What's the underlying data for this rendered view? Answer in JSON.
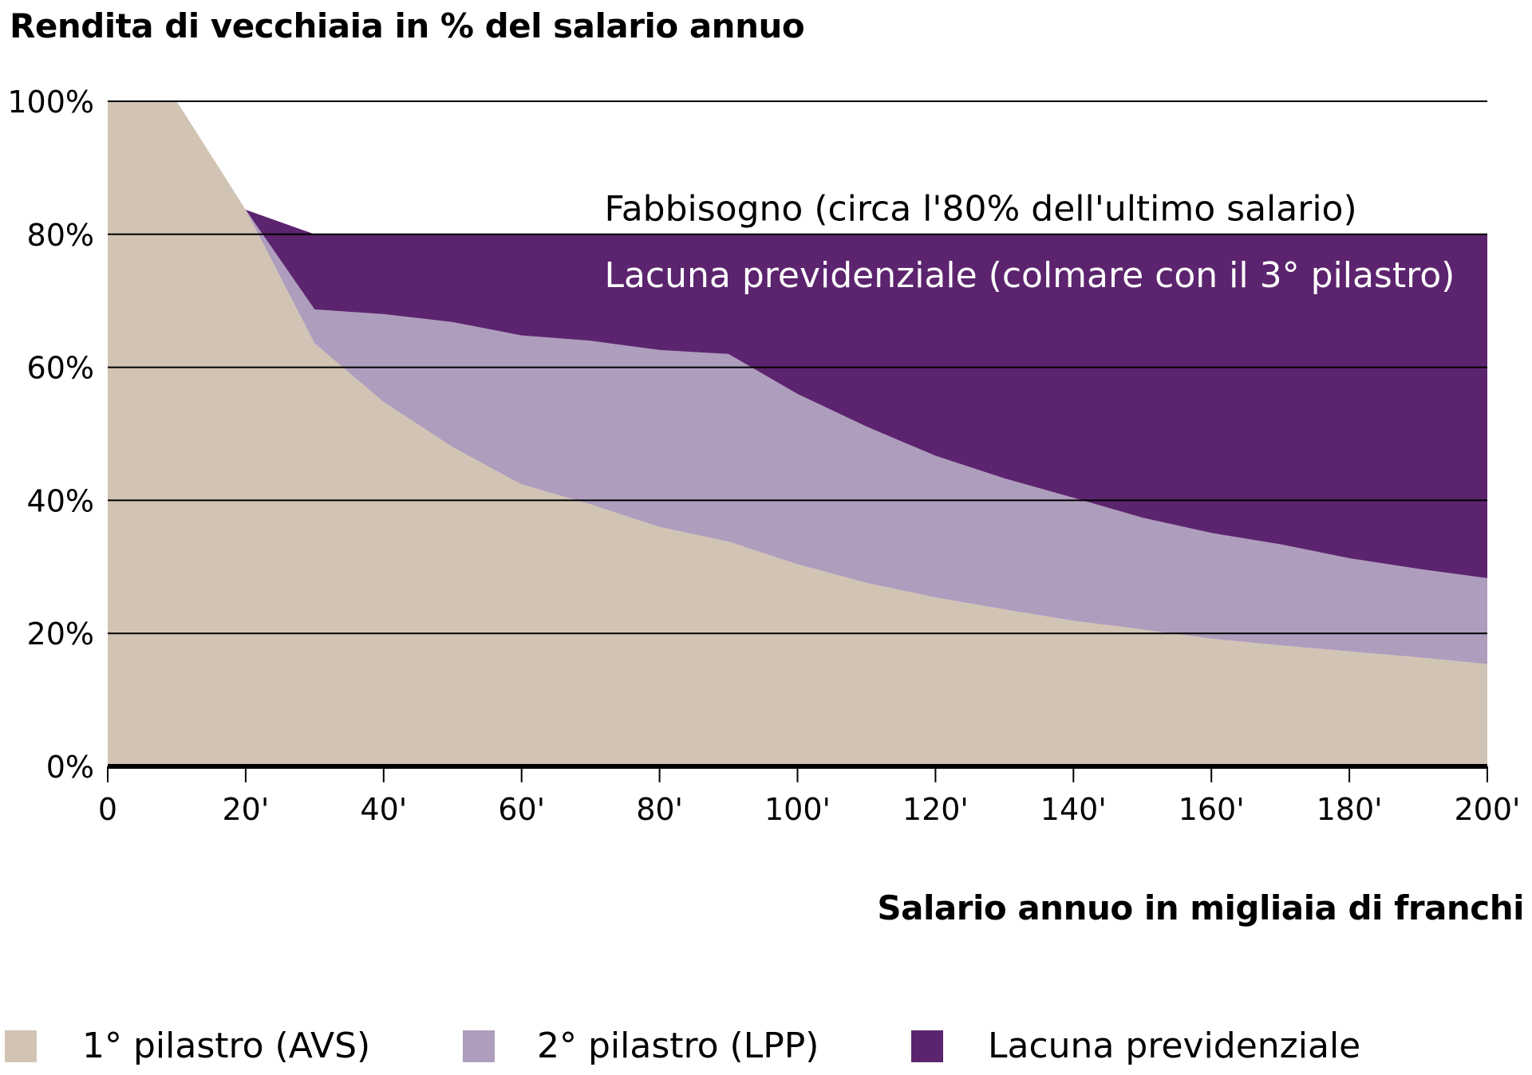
{
  "chart_data": {
    "type": "area",
    "stacked": true,
    "title": "Rendita di vecchiaia in % del salario annuo",
    "xlabel": "Salario annuo in migliaia di franchi",
    "ylabel": "",
    "xlim": [
      0,
      200
    ],
    "ylim": [
      0,
      100
    ],
    "grid": true,
    "x": [
      0,
      10,
      20,
      30,
      40,
      50,
      60,
      70,
      80,
      90,
      100,
      110,
      120,
      130,
      140,
      150,
      160,
      170,
      180,
      190,
      200
    ],
    "xticks": [
      0,
      20,
      40,
      60,
      80,
      100,
      120,
      140,
      160,
      180,
      200
    ],
    "xtick_labels": [
      "0",
      "20'",
      "40'",
      "60'",
      "80'",
      "100'",
      "120'",
      "140'",
      "160'",
      "180'",
      "200'"
    ],
    "yticks": [
      0,
      20,
      40,
      60,
      80,
      100
    ],
    "ytick_labels": [
      "0%",
      "20%",
      "40%",
      "60%",
      "80%",
      "100%"
    ],
    "series": [
      {
        "name": "1° pilastro (AVS)",
        "color": "#d1c4b4",
        "values": [
          100,
          100,
          83.7,
          63.6,
          54.8,
          48,
          42.4,
          39.4,
          36,
          33.8,
          30.4,
          27.6,
          25.4,
          23.6,
          21.9,
          20.6,
          19.2,
          18.2,
          17.3,
          16.4,
          15.4
        ]
      },
      {
        "name": "2° pilastro (LPP)",
        "color": "#ae9dbd",
        "values": [
          0,
          0,
          0,
          5.1,
          13.2,
          18.8,
          22.4,
          24.6,
          26.6,
          28.2,
          25.6,
          23.5,
          21.3,
          19.7,
          18.5,
          16.8,
          15.9,
          15.2,
          14,
          13.3,
          12.9
        ]
      },
      {
        "name": "Lacuna previdenziale",
        "color": "#5c246e",
        "values": [
          0,
          0,
          0,
          11.3,
          12,
          13.2,
          15.2,
          16,
          17.4,
          18,
          24,
          28.9,
          33.3,
          36.7,
          39.6,
          42.6,
          44.9,
          46.6,
          48.7,
          50.3,
          51.7
        ]
      }
    ],
    "annotations": [
      {
        "text": "Fabbisogno (circa l'80% dell'ultimo salario)",
        "x": 72,
        "y": 84,
        "color": "#000000"
      },
      {
        "text": "Lacuna previdenziale (colmare con il 3° pilastro)",
        "x": 72,
        "y": 74,
        "color": "#ffffff"
      }
    ],
    "legend_position": "bottom"
  }
}
